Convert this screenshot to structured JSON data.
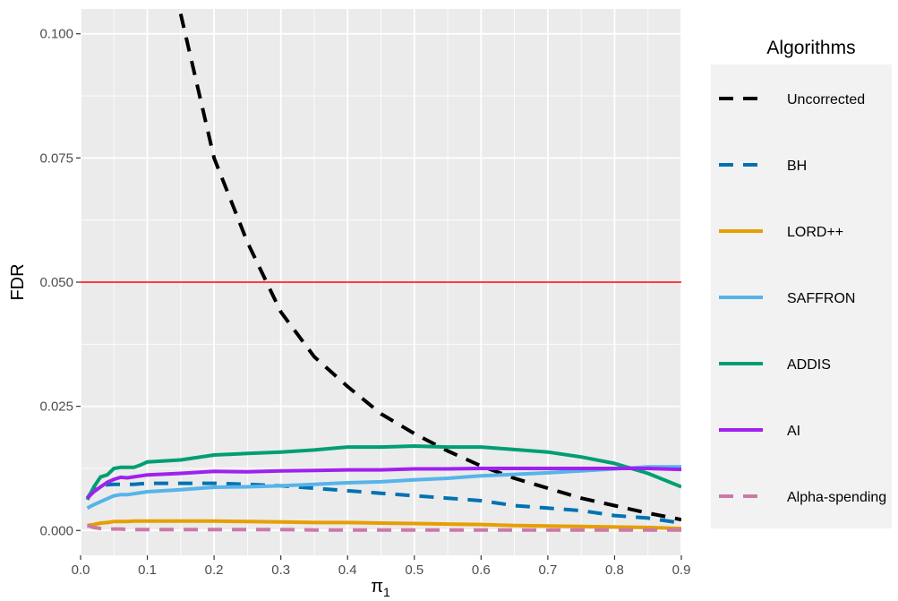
{
  "chart_data": {
    "type": "line",
    "title": "",
    "xlabel": "π",
    "xlabel_subscript": "1",
    "ylabel": "FDR",
    "xlim": [
      0.0,
      0.9
    ],
    "ylim": [
      -0.005,
      0.105
    ],
    "grid": true,
    "background": "#ebebeb",
    "x_ticks": [
      0.0,
      0.1,
      0.2,
      0.3,
      0.4,
      0.5,
      0.6,
      0.7,
      0.8,
      0.9
    ],
    "x_tick_labels": [
      "0.0",
      "0.1",
      "0.2",
      "0.3",
      "0.4",
      "0.5",
      "0.6",
      "0.7",
      "0.8",
      "0.9"
    ],
    "y_ticks": [
      0.0,
      0.025,
      0.05,
      0.075,
      0.1
    ],
    "y_tick_labels": [
      "0.000",
      "0.025",
      "0.050",
      "0.075",
      "0.100"
    ],
    "reference_line": {
      "y": 0.05,
      "color": "#ff0000"
    },
    "legend": {
      "title": "Algorithms",
      "position": "right"
    },
    "x": [
      0.01,
      0.02,
      0.03,
      0.04,
      0.05,
      0.06,
      0.07,
      0.08,
      0.09,
      0.1,
      0.15,
      0.2,
      0.25,
      0.3,
      0.35,
      0.4,
      0.45,
      0.5,
      0.55,
      0.6,
      0.65,
      0.7,
      0.75,
      0.8,
      0.85,
      0.9
    ],
    "series": [
      {
        "name": "Uncorrected",
        "color": "#000000",
        "dash": "dashed",
        "values": [
          null,
          null,
          null,
          null,
          null,
          null,
          null,
          null,
          null,
          null,
          0.104,
          0.075,
          0.058,
          0.044,
          0.035,
          0.029,
          0.0235,
          0.0195,
          0.016,
          0.013,
          0.0105,
          0.0085,
          0.0065,
          0.005,
          0.0035,
          0.0022
        ]
      },
      {
        "name": "BH",
        "color": "#0072b2",
        "dash": "dashed",
        "values": [
          0.0065,
          0.0085,
          0.009,
          0.0092,
          0.0093,
          0.0093,
          0.0093,
          0.0093,
          0.0094,
          0.0095,
          0.0095,
          0.0095,
          0.0093,
          0.009,
          0.0085,
          0.008,
          0.0075,
          0.007,
          0.0065,
          0.006,
          0.005,
          0.0045,
          0.004,
          0.003,
          0.0025,
          0.0015
        ]
      },
      {
        "name": "LORD++",
        "color": "#e69f00",
        "dash": "solid",
        "values": [
          0.001,
          0.0012,
          0.0015,
          0.0016,
          0.0018,
          0.0018,
          0.0018,
          0.0019,
          0.0019,
          0.0019,
          0.0019,
          0.0019,
          0.0018,
          0.0017,
          0.0016,
          0.0016,
          0.0015,
          0.0014,
          0.0013,
          0.0012,
          0.001,
          0.0009,
          0.0008,
          0.0007,
          0.0006,
          0.0004
        ]
      },
      {
        "name": "SAFFRON",
        "color": "#56b4e9",
        "dash": "solid",
        "values": [
          0.0045,
          0.0052,
          0.0058,
          0.0064,
          0.007,
          0.0072,
          0.0072,
          0.0074,
          0.0076,
          0.0078,
          0.0082,
          0.0087,
          0.0088,
          0.009,
          0.0093,
          0.0096,
          0.0098,
          0.0102,
          0.0105,
          0.011,
          0.0113,
          0.0116,
          0.012,
          0.0124,
          0.0128,
          0.0128
        ]
      },
      {
        "name": "ADDIS",
        "color": "#009e73",
        "dash": "solid",
        "values": [
          0.0062,
          0.0088,
          0.0108,
          0.0112,
          0.0125,
          0.0127,
          0.0127,
          0.0127,
          0.0132,
          0.0138,
          0.0142,
          0.0152,
          0.0155,
          0.0158,
          0.0162,
          0.0168,
          0.0168,
          0.017,
          0.0168,
          0.0168,
          0.0163,
          0.0158,
          0.0148,
          0.0135,
          0.0115,
          0.0088
        ]
      },
      {
        "name": "AI",
        "color": "#a020f0",
        "dash": "solid",
        "values": [
          0.0065,
          0.0078,
          0.0088,
          0.0097,
          0.0103,
          0.0107,
          0.0106,
          0.0108,
          0.011,
          0.0112,
          0.0115,
          0.0119,
          0.0118,
          0.012,
          0.0121,
          0.0122,
          0.0122,
          0.0124,
          0.0124,
          0.0125,
          0.0125,
          0.0125,
          0.0125,
          0.0125,
          0.0125,
          0.0123
        ]
      },
      {
        "name": "Alpha-spending",
        "color": "#cc79a7",
        "dash": "dashed",
        "values": [
          0.001,
          0.0006,
          0.0004,
          0.0003,
          0.0003,
          0.0003,
          0.0002,
          0.0002,
          0.0002,
          0.0002,
          0.0002,
          0.0002,
          0.0002,
          0.0002,
          0.0001,
          0.0001,
          0.0001,
          0.0001,
          0.0001,
          0.0001,
          0.0001,
          0.0001,
          0.0001,
          0.0001,
          0.0001,
          0.0001
        ]
      }
    ]
  }
}
